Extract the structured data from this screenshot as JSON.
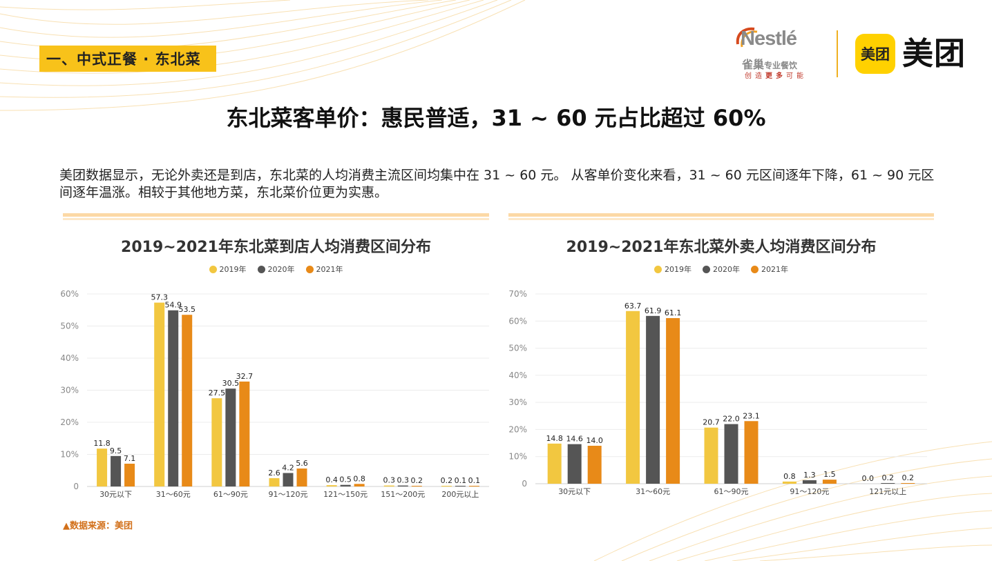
{
  "section_tag": "一、中式正餐 · 东北菜",
  "logos": {
    "nestle_word": "Nestlé",
    "nestle_cn": "雀巢",
    "nestle_cn_small": "专业餐饮",
    "nestle_slogan_a": "创造",
    "nestle_slogan_b": "更多",
    "nestle_slogan_c": "可能",
    "meituan_badge": "美团",
    "meituan_word": "美团"
  },
  "main_title": "东北菜客单价：惠民普适，31 ~ 60 元占比超过 60%",
  "description": "美团数据显示，无论外卖还是到店，东北菜的人均消费主流区间均集中在 31 ~ 60 元。 从客单价变化来看，31 ~ 60 元区间逐年下降，61 ~ 90 元区间逐年温涨。相较于其他地方菜，东北菜价位更为实惠。",
  "source": "▲数据来源：美团",
  "colors": {
    "y2019": "#f2c740",
    "y2020": "#555555",
    "y2021": "#e88a18"
  },
  "chart_data": [
    {
      "type": "bar",
      "title": "2019~2021年东北菜到店人均消费区间分布",
      "categories": [
        "30元以下",
        "31～60元",
        "61～90元",
        "91～120元",
        "121～150元",
        "151～200元",
        "200元以上"
      ],
      "series": [
        {
          "name": "2019年",
          "values": [
            11.8,
            57.3,
            27.5,
            2.6,
            0.4,
            0.3,
            0.2
          ],
          "labels": [
            "11.8",
            "57.3",
            "27.5",
            "2.6",
            "0.4",
            "0.3",
            "0.2"
          ]
        },
        {
          "name": "2020年",
          "values": [
            9.5,
            54.9,
            30.5,
            4.2,
            0.5,
            0.3,
            0.1
          ],
          "labels": [
            "9.5",
            "54.9",
            "30.5",
            "4.2",
            "0.5",
            "0.3",
            "0.1"
          ]
        },
        {
          "name": "2021年",
          "values": [
            7.1,
            53.5,
            32.7,
            5.6,
            0.8,
            0.2,
            0.1
          ],
          "labels": [
            "7.1",
            "53.5",
            "32.7",
            "5.6",
            "0.8",
            "0.2",
            "0.1"
          ]
        }
      ],
      "ylim": [
        0,
        60
      ],
      "yticks": [
        0,
        10,
        20,
        30,
        40,
        50,
        60
      ],
      "ytick_labels": [
        "0",
        "10%",
        "20%",
        "30%",
        "40%",
        "50%",
        "60%"
      ],
      "grid": true,
      "legend": "top-center"
    },
    {
      "type": "bar",
      "title": "2019~2021年东北菜外卖人均消费区间分布",
      "categories": [
        "30元以下",
        "31～60元",
        "61～90元",
        "91～120元",
        "121元以上"
      ],
      "series": [
        {
          "name": "2019年",
          "values": [
            14.8,
            63.7,
            20.7,
            0.8,
            0.0
          ],
          "labels": [
            "14.8",
            "63.7",
            "20.7",
            "0.8",
            "0.0"
          ]
        },
        {
          "name": "2020年",
          "values": [
            14.6,
            61.9,
            22.0,
            1.3,
            0.2
          ],
          "labels": [
            "14.6",
            "61.9",
            "22.0",
            "1.3",
            "0.2"
          ]
        },
        {
          "name": "2021年",
          "values": [
            14.0,
            61.1,
            23.1,
            1.5,
            0.2
          ],
          "labels": [
            "14.0",
            "61.1",
            "23.1",
            "1.5",
            "0.2"
          ]
        }
      ],
      "ylim": [
        0,
        70
      ],
      "yticks": [
        0,
        10,
        20,
        30,
        40,
        50,
        60,
        70
      ],
      "ytick_labels": [
        "0",
        "10%",
        "20%",
        "30%",
        "40%",
        "50%",
        "60%",
        "70%"
      ],
      "grid": true,
      "legend": "top-center"
    }
  ]
}
